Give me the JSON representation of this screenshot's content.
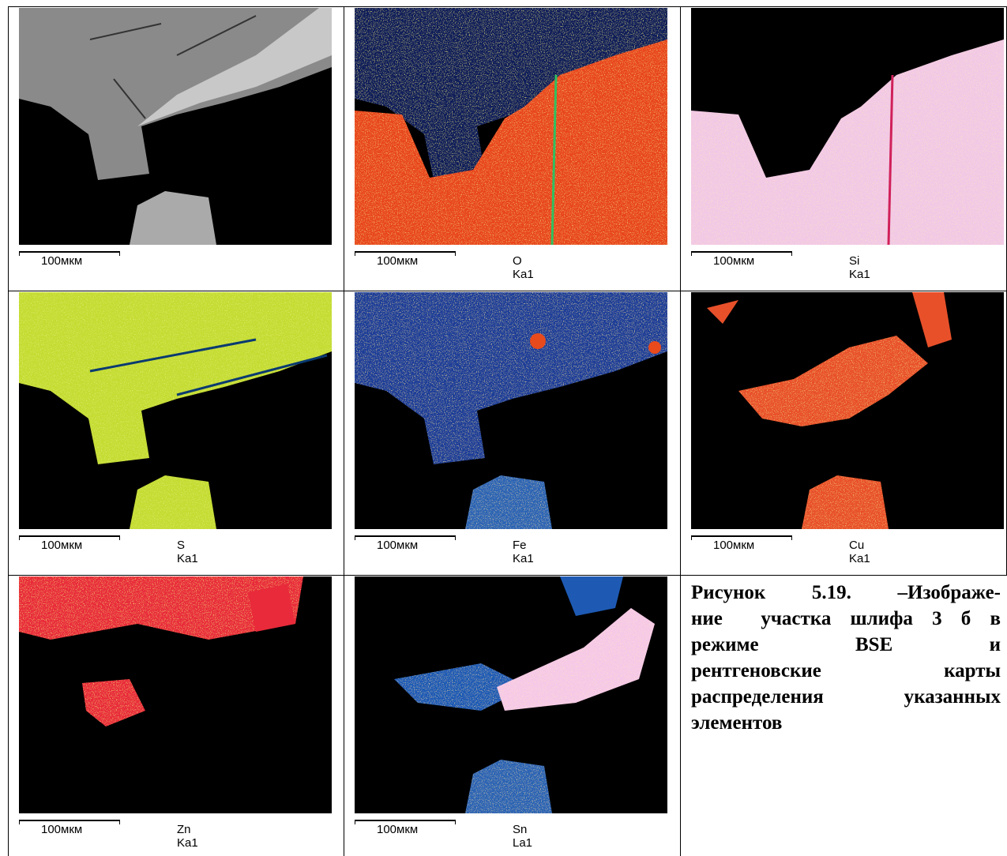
{
  "figure": {
    "cells": [
      {
        "scale": "100мкм"
      },
      {
        "scale": "100мкм",
        "label": "O Ka1"
      },
      {
        "scale": "100мкм",
        "label": "Si Ka1"
      },
      {
        "scale": "100мкм",
        "label": "S Ka1"
      },
      {
        "scale": "100мкм",
        "label": "Fe Ka1"
      },
      {
        "scale": "100мкм",
        "label": "Cu Ka1"
      },
      {
        "scale": "100мкм",
        "label": "Zn Ka1"
      },
      {
        "scale": "100мкм",
        "label": "Sn La1"
      }
    ],
    "caption": [
      "Рисунок 5.19. –Изображе-",
      "ние  участка шлифа 3 б в",
      "режиме BSE и",
      "рентгеновские карты",
      "распределения указанных",
      "элементов"
    ]
  }
}
